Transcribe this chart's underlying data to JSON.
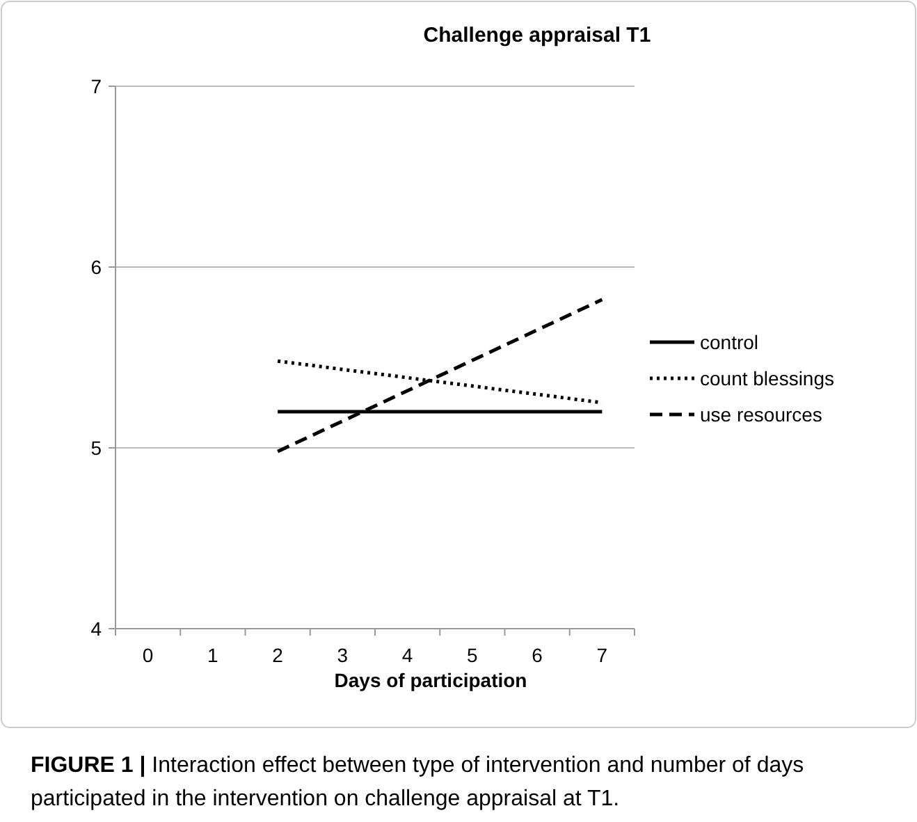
{
  "chart_data": {
    "type": "line",
    "title": "Challenge appraisal T1",
    "xlabel": "Days of participation",
    "categories": [
      "0",
      "1",
      "2",
      "3",
      "4",
      "5",
      "6",
      "7"
    ],
    "series": [
      {
        "name": "control",
        "color": "#000000",
        "line_style": "solid",
        "x": [
          "2",
          "7"
        ],
        "values": [
          5.2,
          5.2
        ]
      },
      {
        "name": "count blessings",
        "color": "#000000",
        "line_style": "dotted",
        "x": [
          "2",
          "7"
        ],
        "values": [
          5.48,
          5.25
        ]
      },
      {
        "name": "use resources",
        "color": "#000000",
        "line_style": "dashed",
        "x": [
          "2",
          "7"
        ],
        "values": [
          4.98,
          5.82
        ]
      }
    ],
    "ylim": [
      4,
      7
    ],
    "yticks": [
      4,
      5,
      6,
      7
    ],
    "grid": "y",
    "legend": "right",
    "annotations": [
      "FIGURE 1 | Interaction effect between type of intervention and number of days participated in the intervention on challenge appraisal at T1."
    ]
  }
}
